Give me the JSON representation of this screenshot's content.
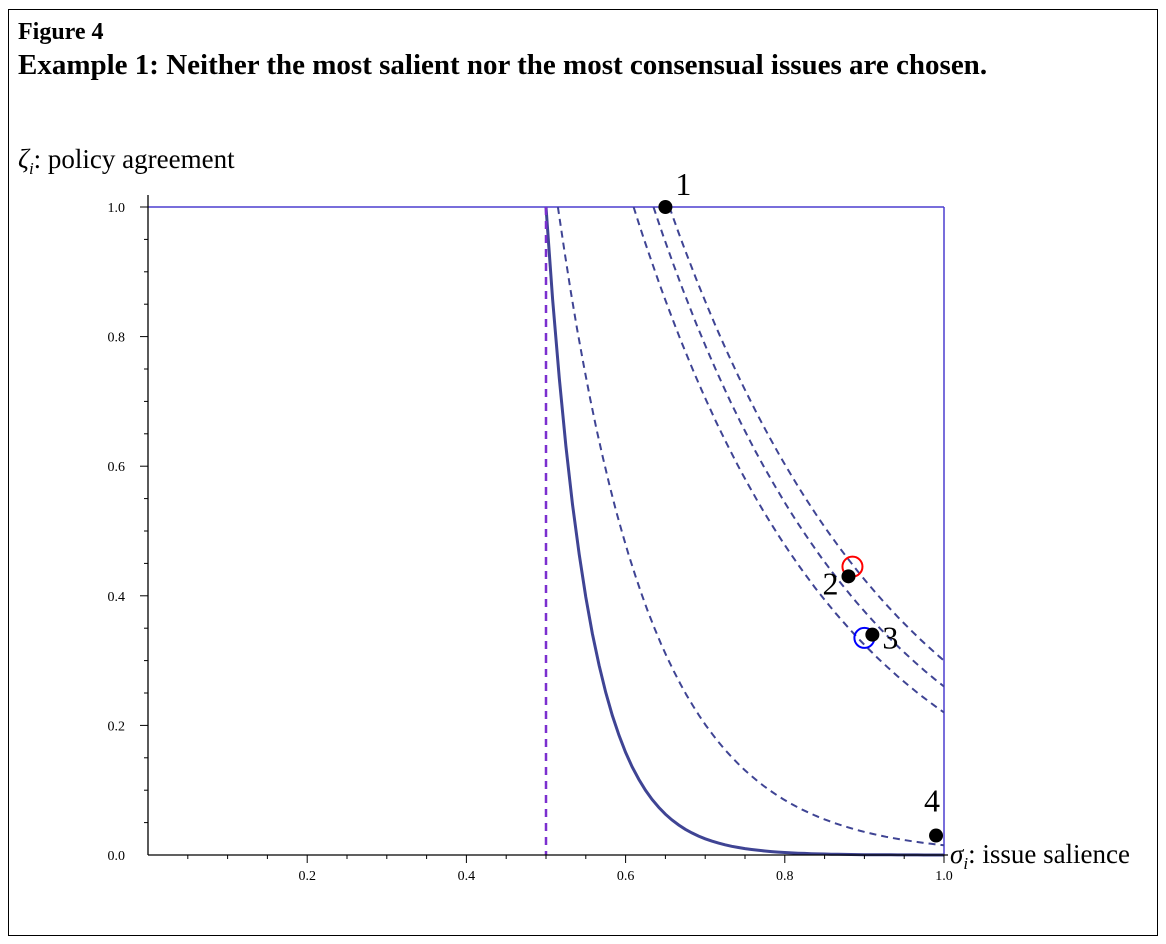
{
  "figure": {
    "label": "Figure 4",
    "caption": "Example 1: Neither the most salient nor the most consensual issues are chosen."
  },
  "chart_data": {
    "type": "scatter",
    "ylabel_symbol": "ζ",
    "ylabel_sub": "i",
    "ylabel_text": ": policy agreement",
    "xlabel_symbol": "σ",
    "xlabel_sub": "i",
    "xlabel_text": ": issue salience",
    "xlim": [
      0.0,
      1.0
    ],
    "ylim": [
      0.0,
      1.0
    ],
    "x_ticks": [
      {
        "value": 0.2,
        "label": "0.2"
      },
      {
        "value": 0.4,
        "label": "0.4"
      },
      {
        "value": 0.6,
        "label": "0.6"
      },
      {
        "value": 0.8,
        "label": "0.8"
      },
      {
        "value": 1.0,
        "label": "1.0"
      }
    ],
    "y_ticks": [
      {
        "value": 0.0,
        "label": "0.0"
      },
      {
        "value": 0.2,
        "label": "0.2"
      },
      {
        "value": 0.4,
        "label": "0.4"
      },
      {
        "value": 0.6,
        "label": "0.6"
      },
      {
        "value": 0.8,
        "label": "0.8"
      },
      {
        "value": 1.0,
        "label": "1.0"
      }
    ],
    "points": [
      {
        "label": "1",
        "x": 0.65,
        "y": 1.0
      },
      {
        "label": "2",
        "x": 0.88,
        "y": 0.43
      },
      {
        "label": "3",
        "x": 0.91,
        "y": 0.34
      },
      {
        "label": "4",
        "x": 0.99,
        "y": 0.03
      }
    ],
    "markers": [
      {
        "x": 0.885,
        "y": 0.445,
        "color": "#ff0000"
      },
      {
        "x": 0.9,
        "y": 0.335,
        "color": "#0000ff"
      }
    ],
    "vertical_line": {
      "x": 0.5,
      "style": "dashed",
      "color": "#7b2fcf"
    },
    "boundary": {
      "y_top": 1.0,
      "x_right": 1.0,
      "color": "#4b3fcf"
    },
    "solid_curve": {
      "x_start": 0.5,
      "x_end": 1.0,
      "y_end": 0.0,
      "color": "#3f4494"
    },
    "dashed_curves": [
      {
        "x_start": 0.515,
        "x_end": 1.0,
        "y_end": 0.015
      },
      {
        "x_start": 0.61,
        "x_end": 1.0,
        "y_end": 0.22
      },
      {
        "x_start": 0.635,
        "x_end": 1.0,
        "y_end": 0.26
      },
      {
        "x_start": 0.655,
        "x_end": 1.0,
        "y_end": 0.3
      }
    ],
    "colors": {
      "curve": "#3f4494",
      "dashed": "#3f4494",
      "axis": "#000000",
      "point": "#000000"
    }
  }
}
